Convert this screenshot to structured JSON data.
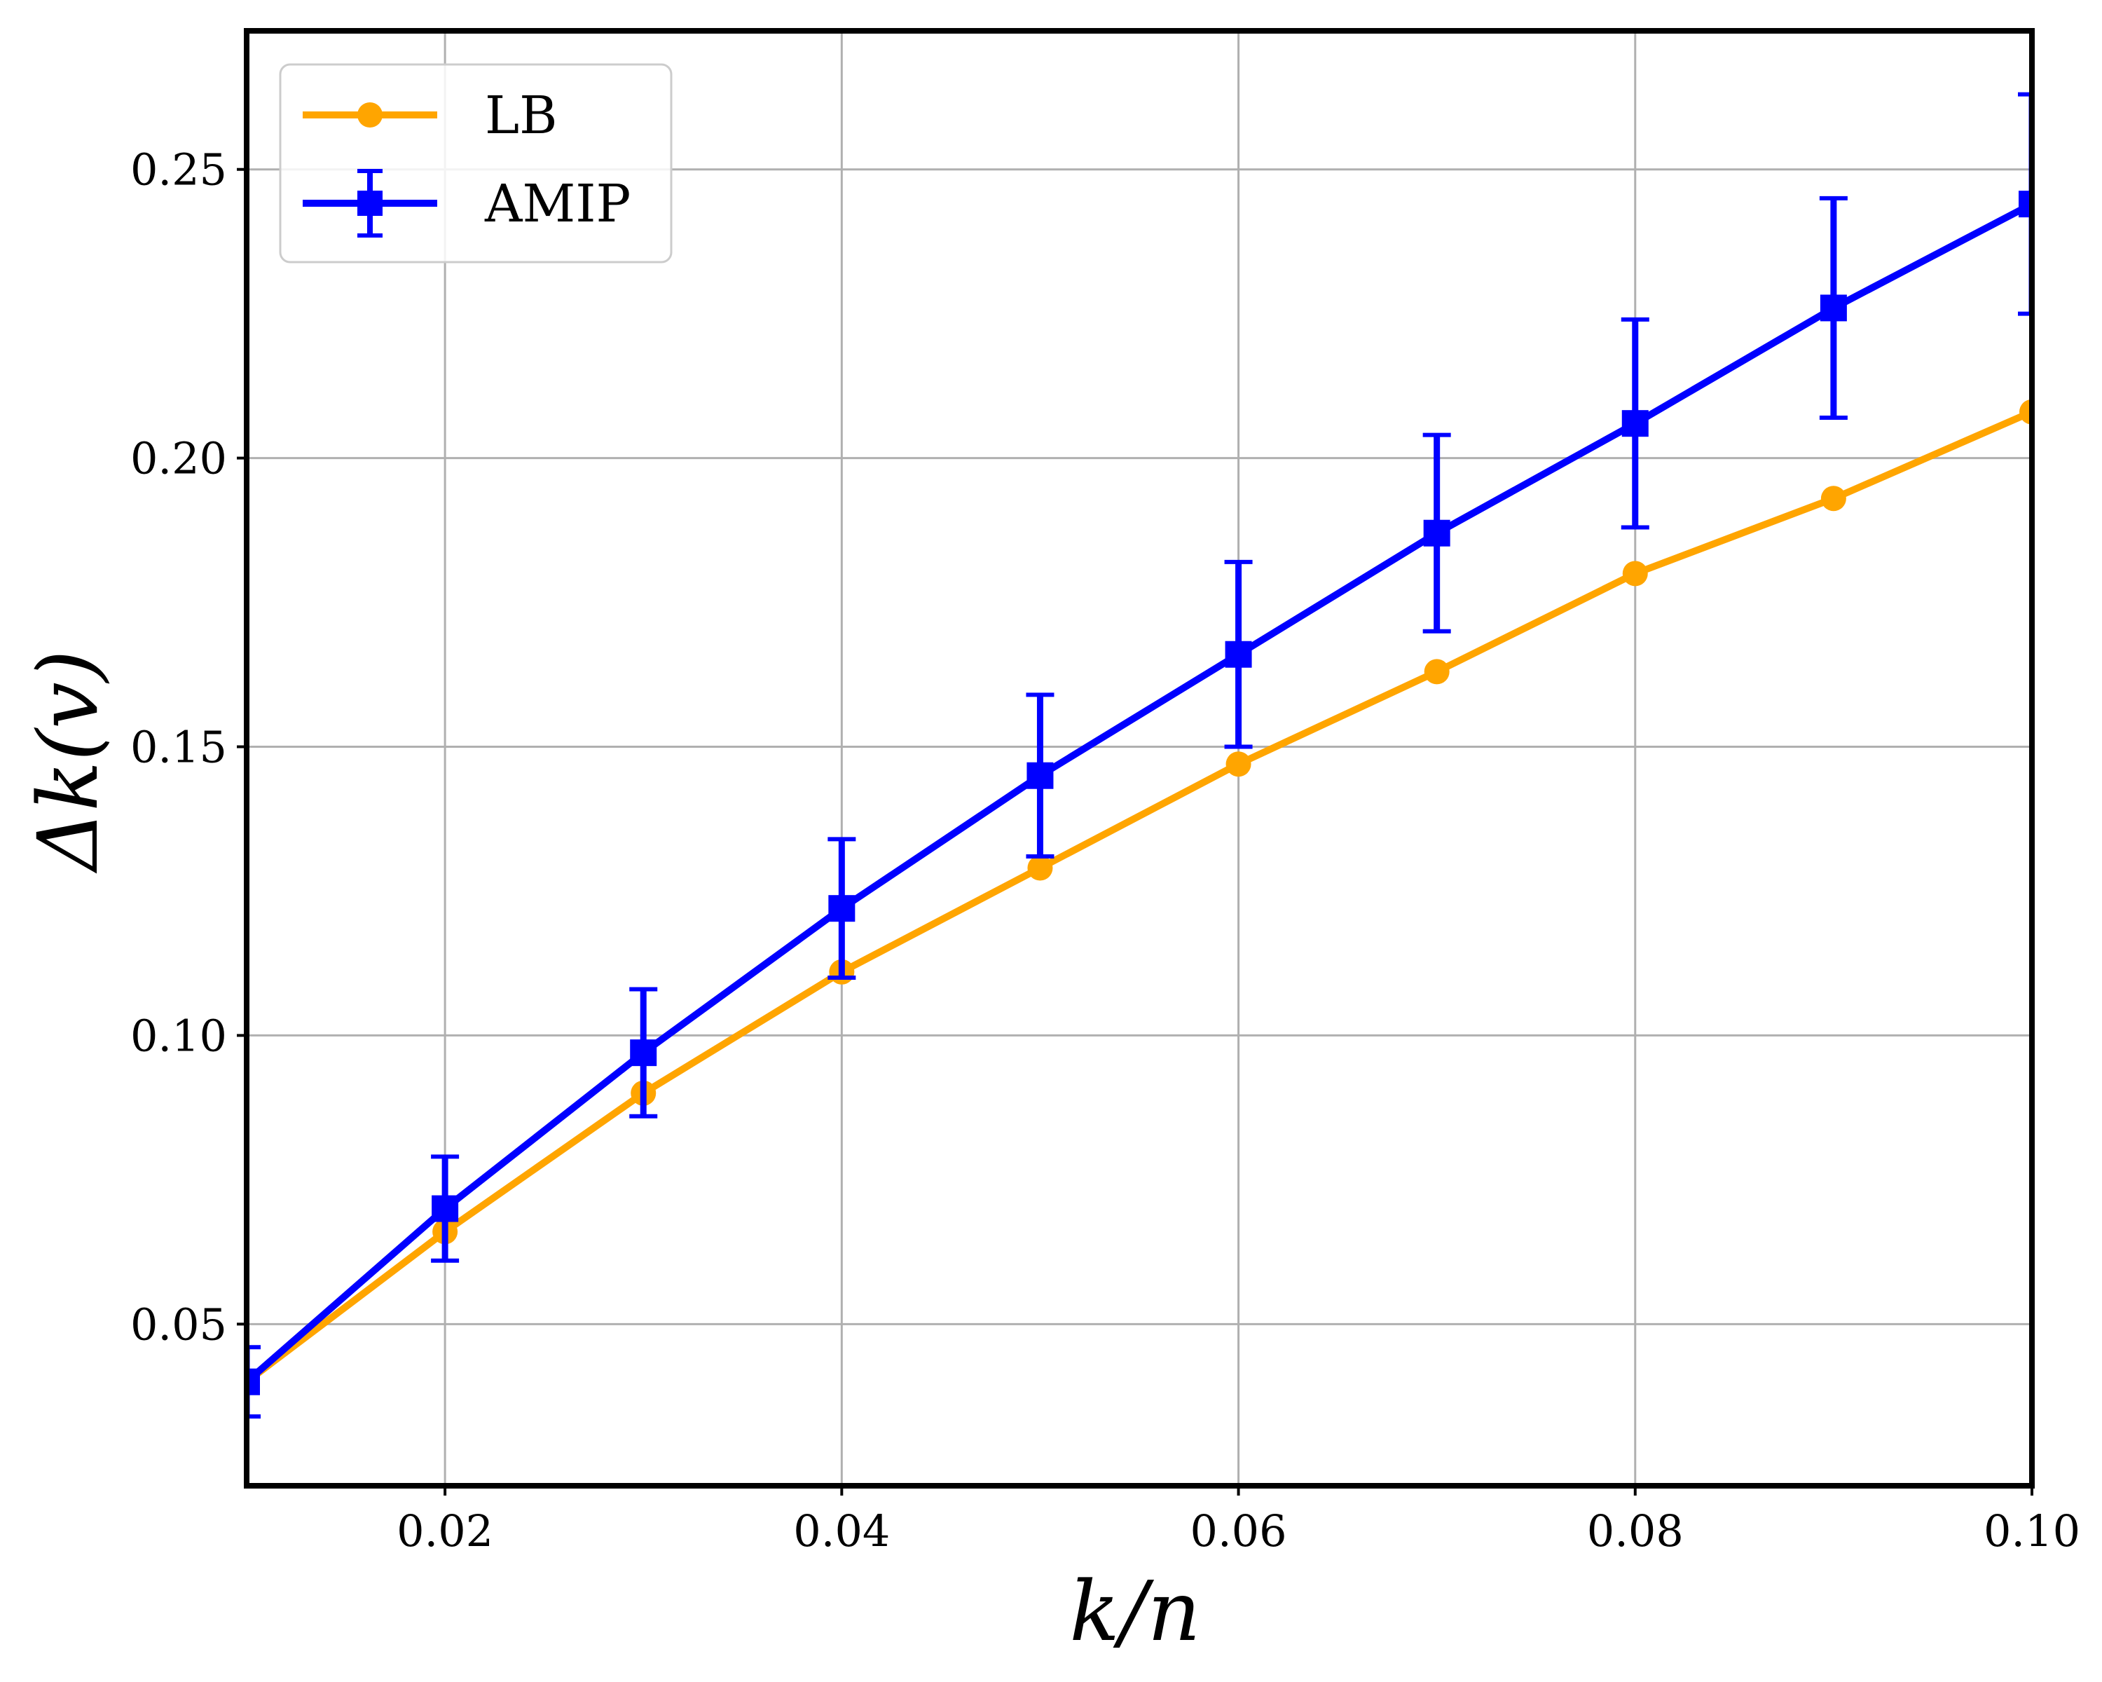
{
  "chart_data": {
    "type": "line",
    "xlabel": "k/n",
    "ylabel": "Δk(v)",
    "xlim": [
      0.01,
      0.1
    ],
    "ylim": [
      0.022,
      0.274
    ],
    "xticks": [
      "0.02",
      "0.04",
      "0.06",
      "0.08",
      "0.10"
    ],
    "yticks": [
      "0.05",
      "0.10",
      "0.15",
      "0.20",
      "0.25"
    ],
    "grid": true,
    "legend_position": "top-left",
    "x": [
      0.01,
      0.02,
      0.03,
      0.04,
      0.05,
      0.06,
      0.07,
      0.08,
      0.09,
      0.1
    ],
    "series": [
      {
        "name": "LB",
        "color": "#FFA500",
        "marker": "circle",
        "values": [
          0.04,
          0.066,
          0.09,
          0.111,
          0.129,
          0.147,
          0.163,
          0.18,
          0.193,
          0.208
        ]
      },
      {
        "name": "AMIP",
        "color": "#0000FF",
        "marker": "square",
        "values": [
          0.04,
          0.07,
          0.097,
          0.122,
          0.145,
          0.166,
          0.187,
          0.206,
          0.226,
          0.244
        ],
        "error": [
          0.006,
          0.009,
          0.011,
          0.012,
          0.014,
          0.016,
          0.017,
          0.018,
          0.019,
          0.019
        ]
      }
    ]
  }
}
